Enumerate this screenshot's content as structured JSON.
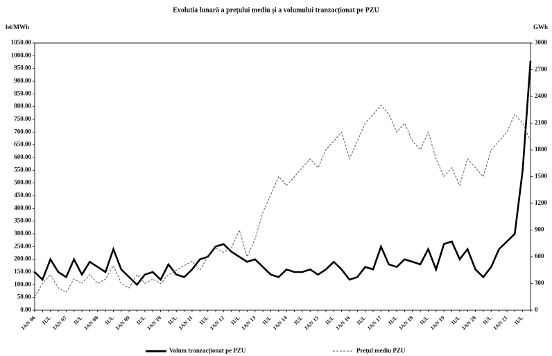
{
  "chart_data": {
    "type": "line",
    "title": "Evolutia lunară a prețului mediu și a volumului tranzacționat pe PZU",
    "y_label": "lei/MWh",
    "y2_label": "GWh",
    "categories": [
      "JAN 06",
      null,
      "IUL",
      null,
      "JAN 07",
      null,
      "IUL",
      null,
      "JAN 08",
      null,
      "IUL",
      null,
      "JAN 09",
      null,
      "IUL",
      null,
      "JAN 10",
      null,
      "IUL",
      null,
      "JAN 11",
      null,
      "IUL",
      null,
      "JAN 12",
      null,
      "IUL",
      null,
      "JAN 13",
      null,
      "IUL",
      null,
      "JAN 14",
      null,
      "IUL",
      null,
      "JAN 15",
      null,
      "IUL",
      null,
      "JAN 16",
      null,
      "IUL",
      null,
      "JAN 17",
      null,
      "IUL",
      null,
      "JAN 18",
      null,
      "IUL",
      null,
      "JAN 19",
      null,
      "IUL",
      null,
      "JAN 20",
      null,
      "IUL",
      null,
      "JAN 21",
      null,
      "IUL",
      null
    ],
    "series": [
      {
        "name": "Volum tranzacționat pe PZU",
        "color": "#000000",
        "axis": "y",
        "values": [
          150,
          120,
          200,
          150,
          130,
          200,
          140,
          190,
          170,
          150,
          240,
          160,
          130,
          100,
          140,
          150,
          120,
          180,
          140,
          130,
          160,
          200,
          210,
          250,
          260,
          230,
          210,
          190,
          200,
          170,
          140,
          130,
          160,
          150,
          150,
          160,
          140,
          160,
          190,
          160,
          120,
          130,
          170,
          160,
          250,
          180,
          170,
          200,
          190,
          180,
          240,
          160,
          260,
          270,
          200,
          240,
          160,
          130,
          170,
          240,
          270,
          300,
          550,
          980
        ]
      },
      {
        "name": "Prețul mediu PZU",
        "color": "#555555",
        "axis": "y2",
        "values": [
          150,
          300,
          400,
          250,
          200,
          350,
          300,
          400,
          300,
          350,
          500,
          300,
          250,
          400,
          300,
          350,
          300,
          400,
          450,
          500,
          550,
          450,
          600,
          700,
          650,
          700,
          900,
          600,
          800,
          1100,
          1300,
          1500,
          1400,
          1500,
          1600,
          1700,
          1600,
          1800,
          1900,
          2000,
          1700,
          1900,
          2100,
          2200,
          2300,
          2200,
          2000,
          2100,
          1900,
          1800,
          2000,
          1700,
          1500,
          1600,
          1400,
          1700,
          1600,
          1500,
          1800,
          1900,
          2000,
          2200,
          2100,
          1900
        ]
      }
    ],
    "ylim": [
      0,
      1050
    ],
    "yticks": [
      {
        "value": 0,
        "label": "0.00"
      },
      {
        "value": 50,
        "label": "50.00"
      },
      {
        "value": 100,
        "label": "100.00"
      },
      {
        "value": 150,
        "label": "150.00"
      },
      {
        "value": 200,
        "label": "200.00"
      },
      {
        "value": 250,
        "label": "250.00"
      },
      {
        "value": 300,
        "label": "300.00"
      },
      {
        "value": 350,
        "label": "350.00"
      },
      {
        "value": 400,
        "label": "400.00"
      },
      {
        "value": 450,
        "label": "450.00"
      },
      {
        "value": 500,
        "label": "500.00"
      },
      {
        "value": 550,
        "label": "550.00"
      },
      {
        "value": 600,
        "label": "600.00"
      },
      {
        "value": 650,
        "label": "650.00"
      },
      {
        "value": 700,
        "label": "700.00"
      },
      {
        "value": 750,
        "label": "750.00"
      },
      {
        "value": 800,
        "label": "800.00"
      },
      {
        "value": 850,
        "label": "850.00"
      },
      {
        "value": 900,
        "label": "900.00"
      },
      {
        "value": 950,
        "label": "950.00"
      },
      {
        "value": 1000,
        "label": "1000.00"
      },
      {
        "value": 1050,
        "label": "1050.00"
      }
    ],
    "y2lim": [
      0,
      3000
    ],
    "y2ticks": [
      0,
      300,
      600,
      900,
      1200,
      1500,
      1800,
      2100,
      2400,
      2700,
      3000
    ]
  }
}
